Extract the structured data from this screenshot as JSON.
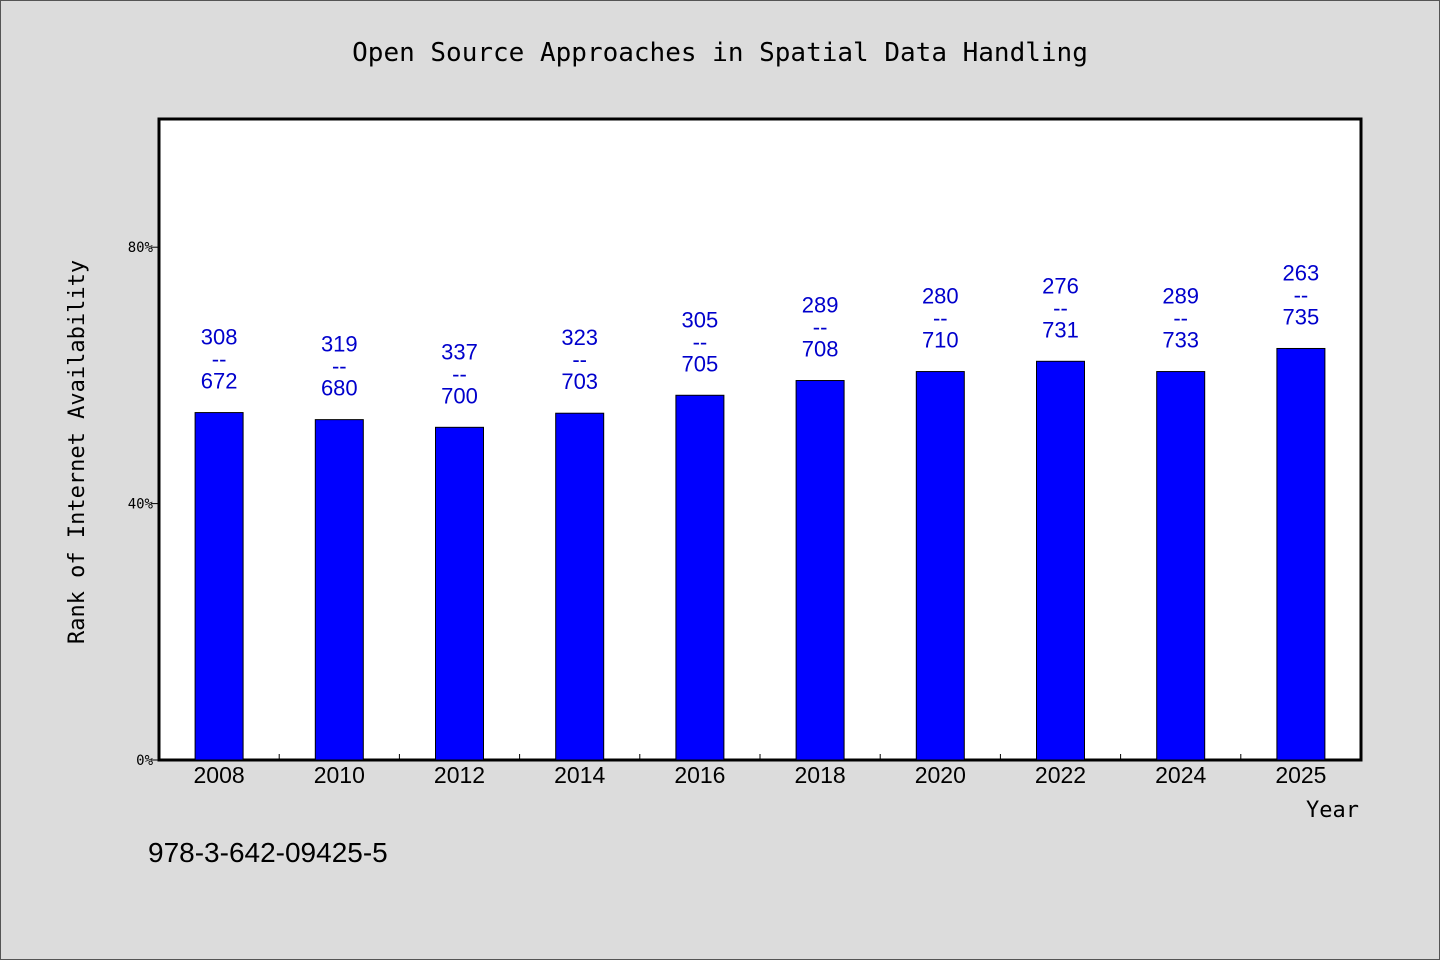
{
  "chart_data": {
    "type": "bar",
    "title": "Open Source Approaches in Spatial Data Handling",
    "xlabel": "Year",
    "ylabel": "Rank of Internet Availability",
    "categories": [
      "2008",
      "2010",
      "2012",
      "2014",
      "2016",
      "2018",
      "2020",
      "2022",
      "2024",
      "2025"
    ],
    "values": [
      54.2,
      53.1,
      51.9,
      54.1,
      56.9,
      59.2,
      60.6,
      62.2,
      60.6,
      64.2
    ],
    "bar_labels": [
      [
        "308",
        "--",
        "672"
      ],
      [
        "319",
        "--",
        "680"
      ],
      [
        "337",
        "--",
        "700"
      ],
      [
        "323",
        "--",
        "703"
      ],
      [
        "305",
        "--",
        "705"
      ],
      [
        "289",
        "--",
        "708"
      ],
      [
        "280",
        "--",
        "710"
      ],
      [
        "276",
        "--",
        "731"
      ],
      [
        "289",
        "--",
        "733"
      ],
      [
        "263",
        "--",
        "735"
      ]
    ],
    "yticks": [
      "0%",
      "40%",
      "80%"
    ],
    "ytick_values": [
      0,
      40,
      80
    ],
    "ylim": [
      0,
      100
    ],
    "grid": false,
    "bar_color": "#0000ff",
    "label_color": "#0000cc"
  },
  "footer": {
    "isbn": "978-3-642-09425-5"
  }
}
